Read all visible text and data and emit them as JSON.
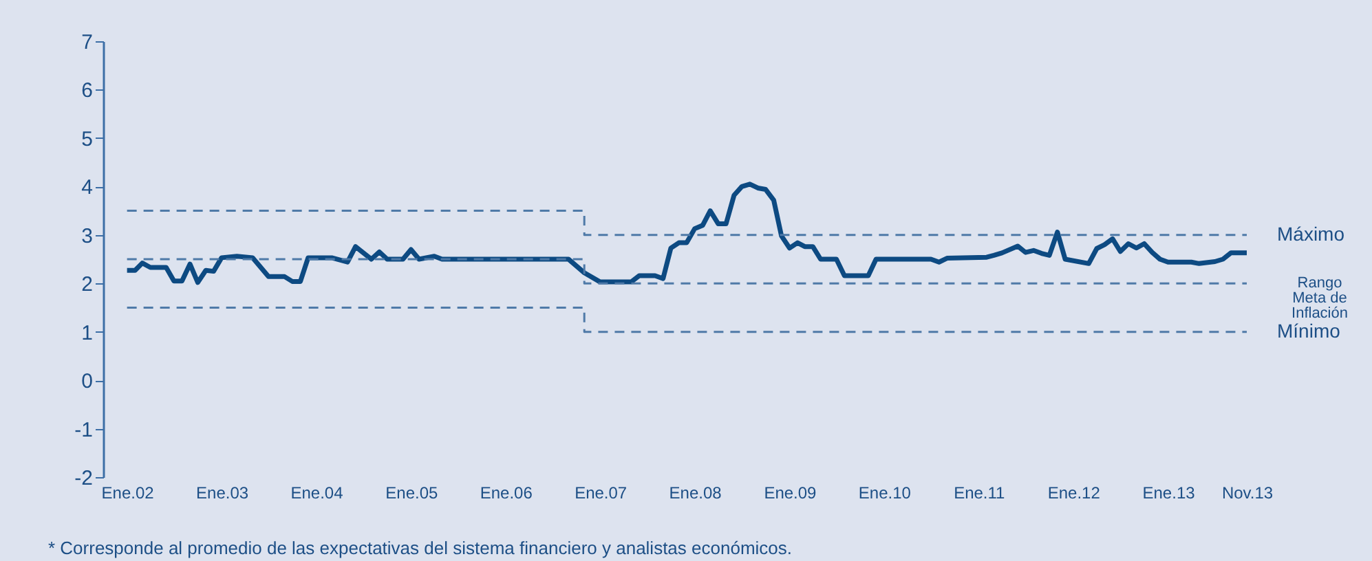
{
  "chart_data": {
    "type": "line",
    "xlim": [
      "2001-10",
      "2013-11"
    ],
    "xticks": [
      {
        "value": "2002-01",
        "label": "Ene.02"
      },
      {
        "value": "2003-01",
        "label": "Ene.03"
      },
      {
        "value": "2004-01",
        "label": "Ene.04"
      },
      {
        "value": "2005-01",
        "label": "Ene.05"
      },
      {
        "value": "2006-01",
        "label": "Ene.06"
      },
      {
        "value": "2007-01",
        "label": "Ene.07"
      },
      {
        "value": "2008-01",
        "label": "Ene.08"
      },
      {
        "value": "2009-01",
        "label": "Ene.09"
      },
      {
        "value": "2010-01",
        "label": "Ene.10"
      },
      {
        "value": "2011-01",
        "label": "Ene.11"
      },
      {
        "value": "2012-01",
        "label": "Ene.12"
      },
      {
        "value": "2013-01",
        "label": "Ene.13"
      },
      {
        "value": "2013-11",
        "label": "Nov.13"
      }
    ],
    "ylim": [
      -2,
      7
    ],
    "yticks": [
      -2,
      -1,
      0,
      1,
      2,
      3,
      4,
      5,
      6,
      7
    ],
    "series": [
      {
        "color": "#0d4a82",
        "line_style": "solid",
        "x": [
          "2002-01",
          "2002-02",
          "2002-03",
          "2002-04",
          "2002-06",
          "2002-07",
          "2002-08",
          "2002-09",
          "2002-10",
          "2002-11",
          "2002-12",
          "2003-01",
          "2003-03",
          "2003-05",
          "2003-07",
          "2003-09",
          "2003-10",
          "2003-11",
          "2003-12",
          "2004-03",
          "2004-05",
          "2004-06",
          "2004-08",
          "2004-09",
          "2004-10",
          "2004-12",
          "2005-01",
          "2005-02",
          "2005-04",
          "2005-05",
          "2006-09",
          "2006-11",
          "2007-01",
          "2007-05",
          "2007-06",
          "2007-08",
          "2007-09",
          "2007-10",
          "2007-11",
          "2007-12",
          "2008-01",
          "2008-02",
          "2008-03",
          "2008-04",
          "2008-05",
          "2008-06",
          "2008-07",
          "2008-08",
          "2008-09",
          "2008-10",
          "2008-11",
          "2008-12",
          "2009-01",
          "2009-02",
          "2009-03",
          "2009-04",
          "2009-05",
          "2009-07",
          "2009-08",
          "2009-11",
          "2009-12",
          "2010-07",
          "2010-08",
          "2010-09",
          "2011-02",
          "2011-03",
          "2011-04",
          "2011-06",
          "2011-07",
          "2011-08",
          "2011-09",
          "2011-10",
          "2011-11",
          "2011-12",
          "2012-03",
          "2012-04",
          "2012-05",
          "2012-06",
          "2012-07",
          "2012-08",
          "2012-09",
          "2012-10",
          "2012-11",
          "2012-12",
          "2013-01",
          "2013-04",
          "2013-05",
          "2013-07",
          "2013-08",
          "2013-09",
          "2013-11"
        ],
        "values": [
          2.27,
          2.27,
          2.42,
          2.33,
          2.33,
          2.05,
          2.05,
          2.4,
          2.02,
          2.27,
          2.25,
          2.53,
          2.56,
          2.53,
          2.14,
          2.14,
          2.04,
          2.04,
          2.53,
          2.53,
          2.44,
          2.76,
          2.5,
          2.65,
          2.5,
          2.5,
          2.7,
          2.5,
          2.56,
          2.5,
          2.5,
          2.22,
          2.03,
          2.03,
          2.16,
          2.16,
          2.1,
          2.73,
          2.84,
          2.84,
          3.13,
          3.2,
          3.5,
          3.23,
          3.23,
          3.82,
          4.0,
          4.05,
          3.97,
          3.94,
          3.72,
          2.98,
          2.73,
          2.84,
          2.76,
          2.76,
          2.5,
          2.5,
          2.16,
          2.16,
          2.5,
          2.5,
          2.44,
          2.52,
          2.54,
          2.58,
          2.63,
          2.77,
          2.64,
          2.68,
          2.62,
          2.58,
          3.06,
          2.5,
          2.41,
          2.72,
          2.8,
          2.92,
          2.66,
          2.82,
          2.73,
          2.82,
          2.64,
          2.5,
          2.44,
          2.44,
          2.41,
          2.45,
          2.5,
          2.63,
          2.63
        ]
      },
      {
        "color": "#4f7aa8",
        "line_style": "dashed",
        "x": [
          "2002-01",
          "2006-11",
          "2006-11",
          "2013-11"
        ],
        "values": [
          3.5,
          3.5,
          3,
          3
        ]
      },
      {
        "color": "#4f7aa8",
        "line_style": "dashed",
        "x": [
          "2002-01",
          "2006-11",
          "2006-11",
          "2013-11"
        ],
        "values": [
          2.5,
          2.5,
          2,
          2
        ]
      },
      {
        "color": "#4f7aa8",
        "line_style": "dashed",
        "x": [
          "2002-01",
          "2006-11",
          "2006-11",
          "2013-11"
        ],
        "values": [
          1.5,
          1.5,
          1,
          1
        ]
      }
    ],
    "annotations": [
      {
        "text": "Máximo",
        "x": "2013-11",
        "y": 3
      },
      {
        "text": "Rango\nMeta de\nInflación",
        "x": "2013-11",
        "y": 2
      },
      {
        "text": "Mínimo",
        "x": "2013-11",
        "y": 1
      },
      "* Corresponde al promedio de las expectativas del sistema financiero y analistas económicos."
    ]
  }
}
